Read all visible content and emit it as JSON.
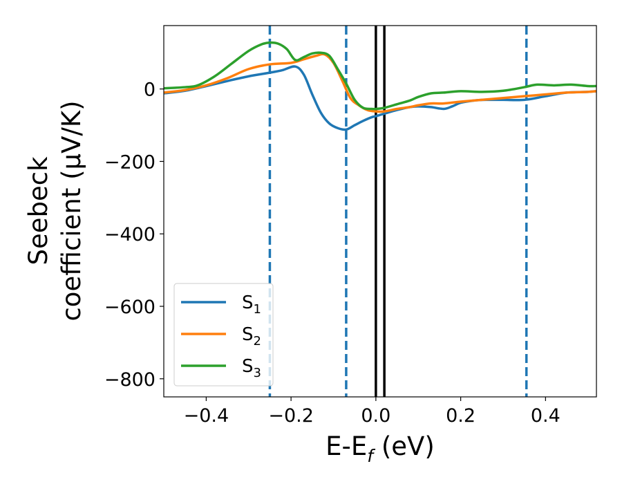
{
  "chart_data": {
    "type": "line",
    "xlabel": "E-E",
    "xlabel_sub": "f",
    "xlabel_unit": " (eV)",
    "ylabel_line1": "Seebeck",
    "ylabel_line2": "coefficient  (μV/K)",
    "xlim": [
      -0.5,
      0.52
    ],
    "ylim": [
      -850,
      175
    ],
    "xticks": [
      -0.4,
      -0.2,
      0.0,
      0.2,
      0.4
    ],
    "xtick_labels": [
      "−0.4",
      "−0.2",
      "0.0",
      "0.2",
      "0.4"
    ],
    "yticks": [
      0,
      -200,
      -400,
      -600,
      -800
    ],
    "ytick_labels": [
      "0",
      "−200",
      "−400",
      "−600",
      "−800"
    ],
    "grid": false,
    "legend_position": "lower-left",
    "vlines_dashed": {
      "x": [
        -0.25,
        -0.07,
        0.355
      ],
      "color": "#1f77b4"
    },
    "vlines_solid": {
      "x": [
        0.0,
        0.02
      ],
      "color": "#000000"
    },
    "series": [
      {
        "name": "S",
        "sub": "1",
        "color": "#1f77b4",
        "x": [
          -0.5,
          -0.45,
          -0.4,
          -0.35,
          -0.3,
          -0.25,
          -0.22,
          -0.19,
          -0.17,
          -0.15,
          -0.13,
          -0.11,
          -0.09,
          -0.07,
          -0.05,
          -0.03,
          -0.01,
          0.0,
          0.02,
          0.05,
          0.08,
          0.1,
          0.13,
          0.16,
          0.18,
          0.2,
          0.23,
          0.26,
          0.3,
          0.35,
          0.4,
          0.45,
          0.5,
          0.52
        ],
        "y": [
          -12,
          -5,
          8,
          22,
          35,
          45,
          52,
          62,
          40,
          -15,
          -65,
          -95,
          -108,
          -112,
          -100,
          -88,
          -78,
          -75,
          -68,
          -58,
          -50,
          -48,
          -50,
          -55,
          -48,
          -38,
          -32,
          -30,
          -30,
          -30,
          -20,
          -10,
          -8,
          -6
        ]
      },
      {
        "name": "S",
        "sub": "2",
        "color": "#ff7f0e",
        "x": [
          -0.5,
          -0.45,
          -0.4,
          -0.35,
          -0.3,
          -0.25,
          -0.2,
          -0.17,
          -0.14,
          -0.12,
          -0.1,
          -0.08,
          -0.06,
          -0.04,
          -0.02,
          0.0,
          0.02,
          0.05,
          0.08,
          0.1,
          0.13,
          0.16,
          0.2,
          0.25,
          0.3,
          0.35,
          0.4,
          0.45,
          0.5,
          0.52
        ],
        "y": [
          -10,
          -3,
          10,
          30,
          55,
          68,
          72,
          82,
          92,
          95,
          72,
          25,
          -25,
          -45,
          -58,
          -62,
          -62,
          -55,
          -50,
          -45,
          -40,
          -40,
          -35,
          -30,
          -25,
          -20,
          -15,
          -10,
          -8,
          -6
        ]
      },
      {
        "name": "S",
        "sub": "3",
        "color": "#2ca02c",
        "x": [
          -0.5,
          -0.45,
          -0.42,
          -0.38,
          -0.34,
          -0.3,
          -0.27,
          -0.25,
          -0.23,
          -0.21,
          -0.19,
          -0.17,
          -0.15,
          -0.13,
          -0.11,
          -0.09,
          -0.07,
          -0.05,
          -0.03,
          -0.01,
          0.0,
          0.02,
          0.05,
          0.08,
          0.1,
          0.13,
          0.16,
          0.2,
          0.25,
          0.3,
          0.35,
          0.38,
          0.42,
          0.46,
          0.5,
          0.52
        ],
        "y": [
          2,
          5,
          10,
          35,
          70,
          105,
          123,
          128,
          125,
          110,
          80,
          88,
          98,
          100,
          92,
          55,
          15,
          -30,
          -52,
          -55,
          -55,
          -52,
          -42,
          -32,
          -22,
          -12,
          -10,
          -6,
          -8,
          -5,
          5,
          12,
          10,
          12,
          8,
          8
        ]
      }
    ]
  }
}
